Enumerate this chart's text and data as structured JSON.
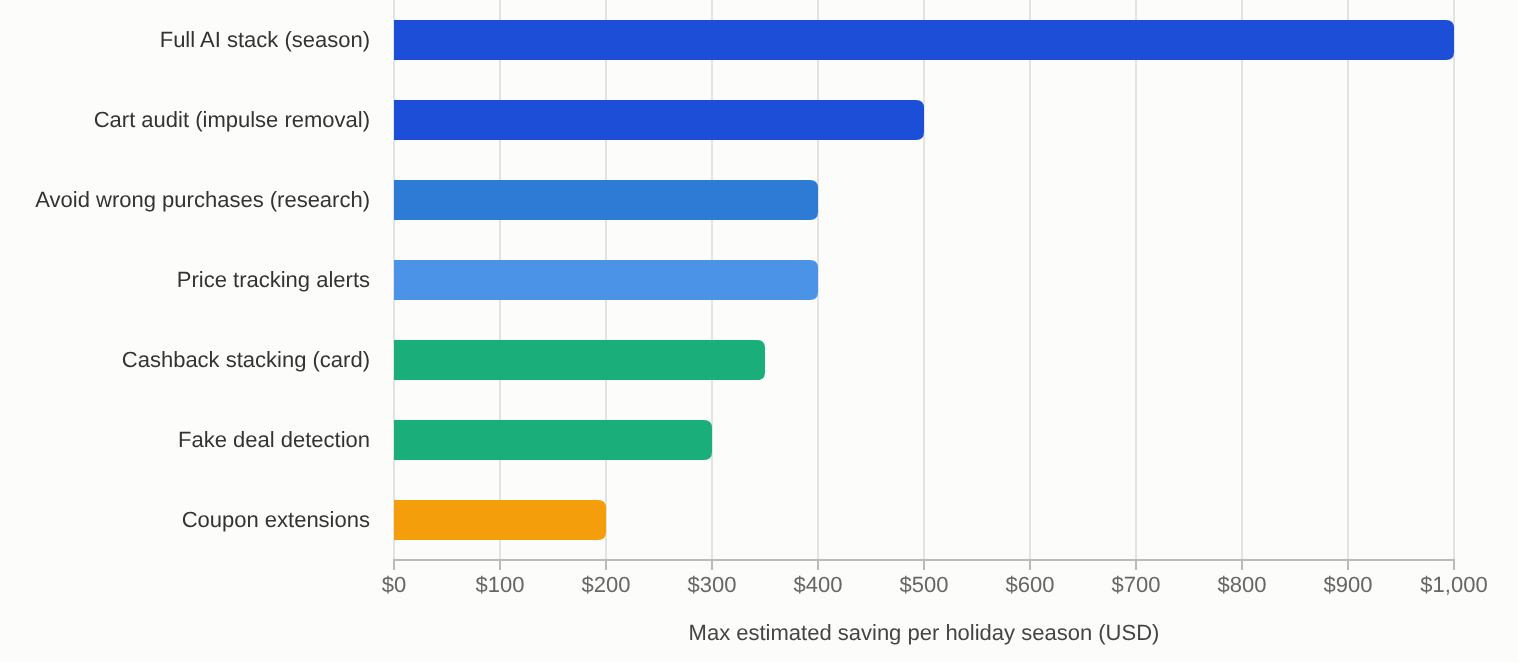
{
  "chart_data": {
    "type": "bar",
    "orientation": "horizontal",
    "categories": [
      "Full AI stack (season)",
      "Cart audit (impulse removal)",
      "Avoid wrong purchases (research)",
      "Price tracking alerts",
      "Cashback stacking (card)",
      "Fake deal detection",
      "Coupon extensions"
    ],
    "values": [
      1000,
      500,
      400,
      400,
      350,
      300,
      200
    ],
    "colors": [
      "#1d4ed8",
      "#1d4ed8",
      "#2e7bd6",
      "#4a93e6",
      "#1aae7a",
      "#1aae7a",
      "#f59e0b"
    ],
    "xlim": [
      0,
      1000
    ],
    "xticks": [
      {
        "value": 0,
        "label": "$0"
      },
      {
        "value": 100,
        "label": "$100"
      },
      {
        "value": 200,
        "label": "$200"
      },
      {
        "value": 300,
        "label": "$300"
      },
      {
        "value": 400,
        "label": "$400"
      },
      {
        "value": 500,
        "label": "$500"
      },
      {
        "value": 600,
        "label": "$600"
      },
      {
        "value": 700,
        "label": "$700"
      },
      {
        "value": 800,
        "label": "$800"
      },
      {
        "value": 900,
        "label": "$900"
      },
      {
        "value": 1000,
        "label": "$1,000"
      }
    ],
    "xlabel": "Max estimated saving per holiday season (USD)",
    "grid": "x"
  }
}
